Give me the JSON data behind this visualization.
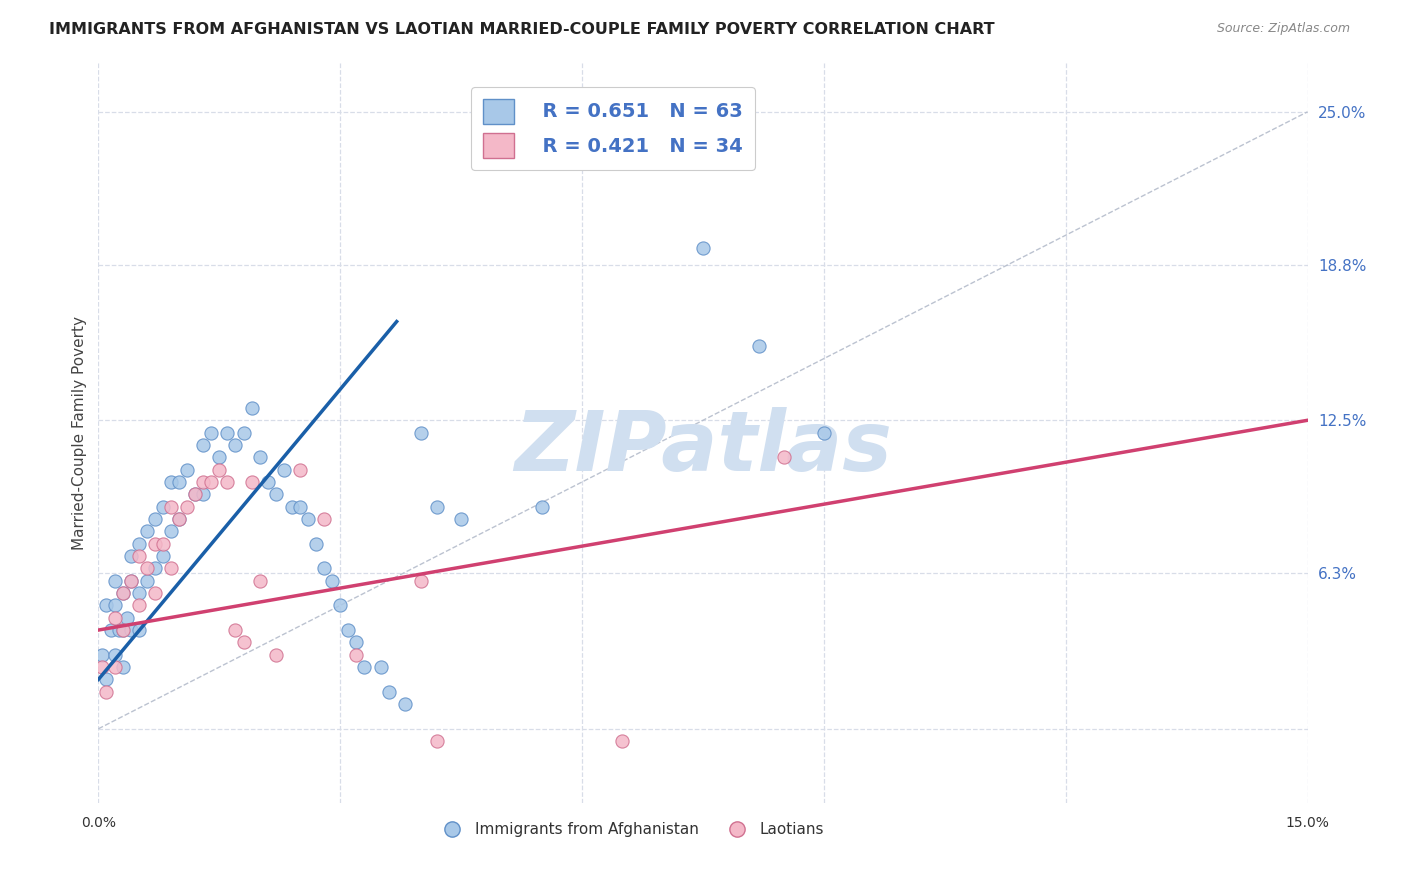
{
  "title": "IMMIGRANTS FROM AFGHANISTAN VS LAOTIAN MARRIED-COUPLE FAMILY POVERTY CORRELATION CHART",
  "source": "Source: ZipAtlas.com",
  "ylabel": "Married-Couple Family Poverty",
  "xlim": [
    0.0,
    0.15
  ],
  "ylim": [
    -0.03,
    0.27
  ],
  "xticks": [
    0.0,
    0.03,
    0.06,
    0.09,
    0.12,
    0.15
  ],
  "xticklabels": [
    "0.0%",
    "",
    "",
    "",
    "",
    "15.0%"
  ],
  "yticks_right": [
    0.063,
    0.125,
    0.188,
    0.25
  ],
  "yticklabels_right": [
    "6.3%",
    "12.5%",
    "18.8%",
    "25.0%"
  ],
  "legend_r1": "R = 0.651",
  "legend_n1": "N = 63",
  "legend_r2": "R = 0.421",
  "legend_n2": "N = 34",
  "scatter_blue_x": [
    0.0005,
    0.001,
    0.001,
    0.0015,
    0.002,
    0.002,
    0.002,
    0.0025,
    0.003,
    0.003,
    0.003,
    0.0035,
    0.004,
    0.004,
    0.004,
    0.005,
    0.005,
    0.005,
    0.006,
    0.006,
    0.007,
    0.007,
    0.008,
    0.008,
    0.009,
    0.009,
    0.01,
    0.01,
    0.011,
    0.012,
    0.013,
    0.013,
    0.014,
    0.015,
    0.016,
    0.017,
    0.018,
    0.019,
    0.02,
    0.021,
    0.022,
    0.023,
    0.024,
    0.025,
    0.026,
    0.027,
    0.028,
    0.029,
    0.03,
    0.031,
    0.032,
    0.033,
    0.035,
    0.036,
    0.038,
    0.04,
    0.042,
    0.045,
    0.055,
    0.065,
    0.075,
    0.082,
    0.09
  ],
  "scatter_blue_y": [
    0.03,
    0.05,
    0.02,
    0.04,
    0.06,
    0.05,
    0.03,
    0.04,
    0.055,
    0.04,
    0.025,
    0.045,
    0.07,
    0.06,
    0.04,
    0.075,
    0.055,
    0.04,
    0.08,
    0.06,
    0.085,
    0.065,
    0.09,
    0.07,
    0.1,
    0.08,
    0.1,
    0.085,
    0.105,
    0.095,
    0.115,
    0.095,
    0.12,
    0.11,
    0.12,
    0.115,
    0.12,
    0.13,
    0.11,
    0.1,
    0.095,
    0.105,
    0.09,
    0.09,
    0.085,
    0.075,
    0.065,
    0.06,
    0.05,
    0.04,
    0.035,
    0.025,
    0.025,
    0.015,
    0.01,
    0.12,
    0.09,
    0.085,
    0.09,
    0.235,
    0.195,
    0.155,
    0.12
  ],
  "scatter_pink_x": [
    0.0005,
    0.001,
    0.002,
    0.002,
    0.003,
    0.003,
    0.004,
    0.005,
    0.005,
    0.006,
    0.007,
    0.007,
    0.008,
    0.009,
    0.009,
    0.01,
    0.011,
    0.012,
    0.013,
    0.014,
    0.015,
    0.016,
    0.017,
    0.018,
    0.019,
    0.02,
    0.022,
    0.025,
    0.028,
    0.032,
    0.04,
    0.042,
    0.065,
    0.085
  ],
  "scatter_pink_y": [
    0.025,
    0.015,
    0.045,
    0.025,
    0.055,
    0.04,
    0.06,
    0.07,
    0.05,
    0.065,
    0.075,
    0.055,
    0.075,
    0.09,
    0.065,
    0.085,
    0.09,
    0.095,
    0.1,
    0.1,
    0.105,
    0.1,
    0.04,
    0.035,
    0.1,
    0.06,
    0.03,
    0.105,
    0.085,
    0.03,
    0.06,
    -0.005,
    -0.005,
    0.11
  ],
  "blue_line_x": [
    0.0,
    0.037
  ],
  "blue_line_y": [
    0.02,
    0.165
  ],
  "pink_line_x": [
    0.0,
    0.15
  ],
  "pink_line_y": [
    0.04,
    0.125
  ],
  "diag_line_x": [
    0.0,
    0.15
  ],
  "diag_line_y": [
    0.0,
    0.25
  ],
  "blue_dot_color": "#a8c8e8",
  "blue_dot_edge": "#6090c8",
  "pink_dot_color": "#f4b8c8",
  "pink_dot_edge": "#d07090",
  "blue_line_color": "#1a5fa8",
  "pink_line_color": "#d04070",
  "diag_color": "#b0b8c8",
  "bg_color": "#ffffff",
  "grid_color": "#d8dde8",
  "title_color": "#222222",
  "source_color": "#888888",
  "ylabel_color": "#444444",
  "right_tick_color": "#4472c4",
  "legend_text_color": "#4472c4",
  "watermark_text": "ZIPatlas",
  "watermark_color": "#d0dff0"
}
